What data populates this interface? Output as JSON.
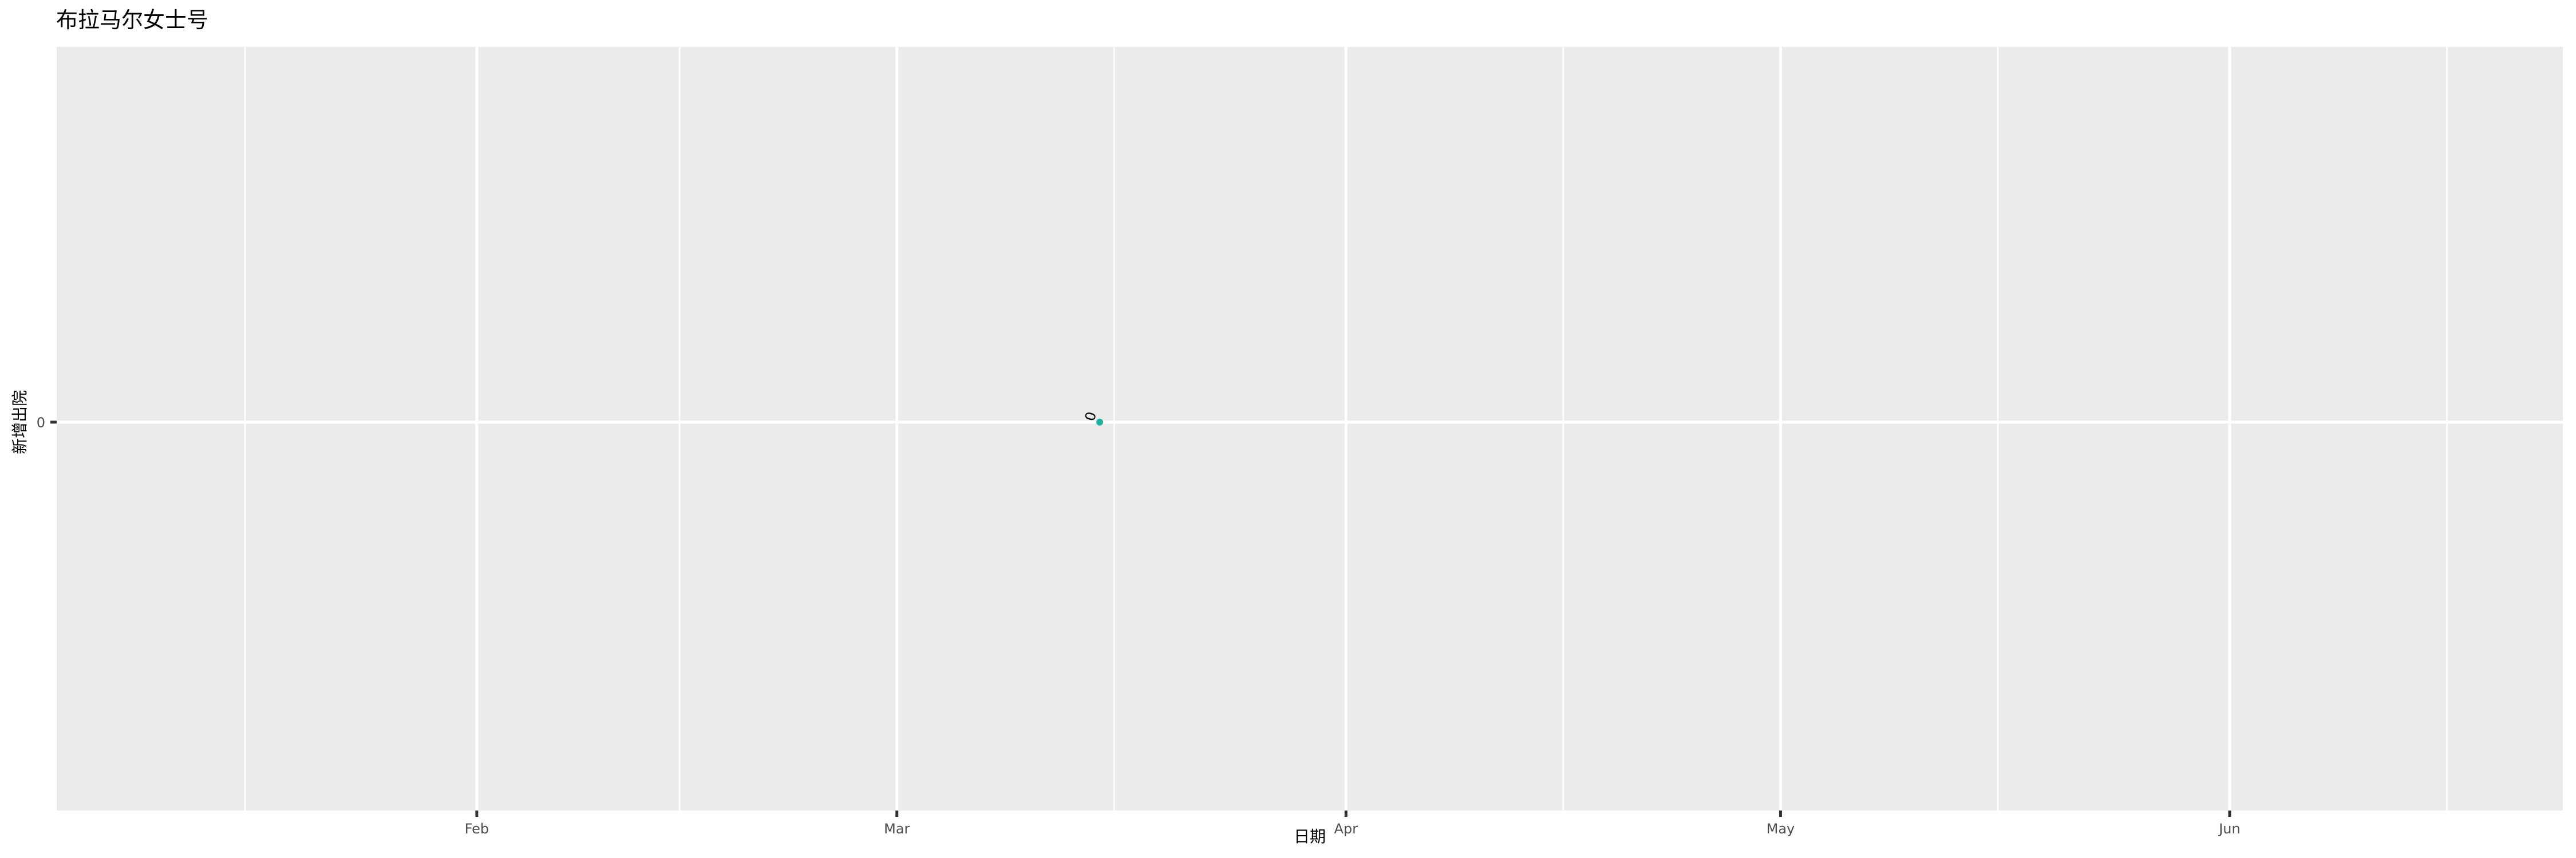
{
  "chart_data": {
    "type": "scatter",
    "title": "布拉马尔女士号",
    "xlabel": "日期",
    "ylabel": "新增出院",
    "x_type": "date",
    "xlim": [
      "2020-01-03",
      "2020-06-24"
    ],
    "ylim": [
      -1,
      1
    ],
    "x_ticks": [
      {
        "date": "2020-02-01",
        "label": "Feb"
      },
      {
        "date": "2020-03-01",
        "label": "Mar"
      },
      {
        "date": "2020-04-01",
        "label": "Apr"
      },
      {
        "date": "2020-05-01",
        "label": "May"
      },
      {
        "date": "2020-06-01",
        "label": "Jun"
      }
    ],
    "x_minor_ticks": [
      "2020-01-16",
      "2020-02-15",
      "2020-03-16",
      "2020-04-16",
      "2020-05-16",
      "2020-06-16"
    ],
    "y_ticks": [
      {
        "value": 0,
        "label": "0"
      }
    ],
    "grid": true,
    "background": "#EBEBEB",
    "series": [
      {
        "color": "#20B2A0",
        "points": [
          {
            "x": "2020-03-15",
            "y": 0,
            "label": "0"
          }
        ]
      }
    ]
  }
}
